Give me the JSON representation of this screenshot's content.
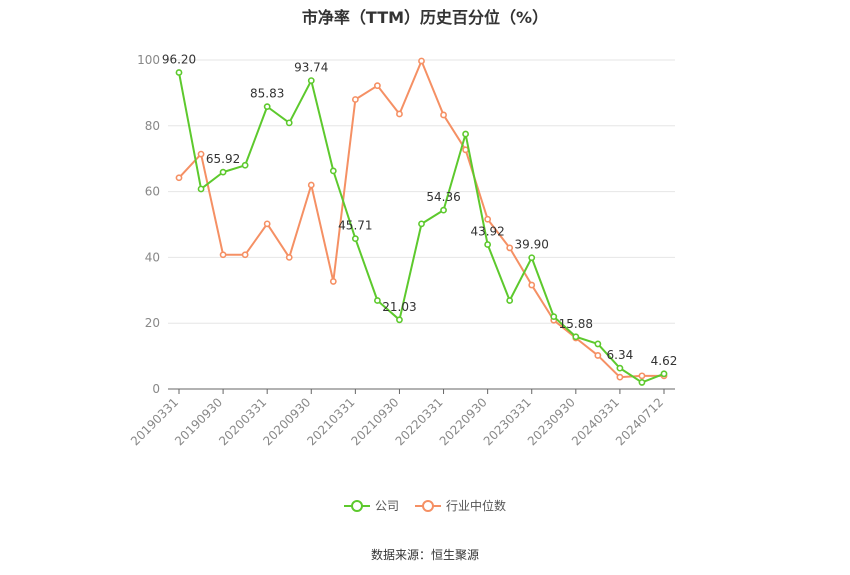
{
  "chart_data": {
    "type": "line",
    "title": "市净率（TTM）历史百分位（%）",
    "categories": [
      "20190331",
      "20190630",
      "20190930",
      "20191231",
      "20200331",
      "20200630",
      "20200930",
      "20201231",
      "20210331",
      "20210630",
      "20210930",
      "20211231",
      "20220331",
      "20220630",
      "20220930",
      "20221231",
      "20230331",
      "20230630",
      "20230930",
      "20231231",
      "20240331",
      "20240630",
      "20240712"
    ],
    "tick_labels": [
      "20190331",
      "20190930",
      "20200331",
      "20200930",
      "20210331",
      "20210930",
      "20220331",
      "20220930",
      "20230331",
      "20230930",
      "20240331",
      "20240712"
    ],
    "ylim": [
      0,
      100
    ],
    "yticks": [
      0,
      20,
      40,
      60,
      80,
      100
    ],
    "grid": true,
    "legend_position": "bottom-center",
    "series": [
      {
        "name": "公司",
        "color": "#5dc92d",
        "values": [
          96.2,
          60.8,
          65.92,
          68.0,
          85.83,
          80.9,
          93.74,
          66.3,
          45.71,
          26.9,
          21.03,
          50.2,
          54.36,
          77.5,
          43.92,
          26.9,
          39.9,
          22.0,
          15.88,
          13.7,
          6.34,
          2.0,
          4.62
        ],
        "labels": {
          "0": "96.20",
          "2": "65.92",
          "4": "85.83",
          "6": "93.74",
          "8": "45.71",
          "10": "21.03",
          "12": "54.36",
          "14": "43.92",
          "16": "39.90",
          "18": "15.88",
          "20": "6.34",
          "22": "4.62"
        }
      },
      {
        "name": "行业中位数",
        "color": "#f59064",
        "values": [
          64.2,
          71.4,
          40.8,
          40.8,
          50.2,
          40.0,
          62.0,
          32.7,
          88.0,
          92.2,
          83.6,
          99.7,
          83.3,
          72.7,
          51.6,
          42.9,
          31.6,
          20.9,
          15.5,
          10.2,
          3.6,
          4.0,
          4.0
        ]
      }
    ]
  },
  "source_note": "数据来源：恒生聚源"
}
